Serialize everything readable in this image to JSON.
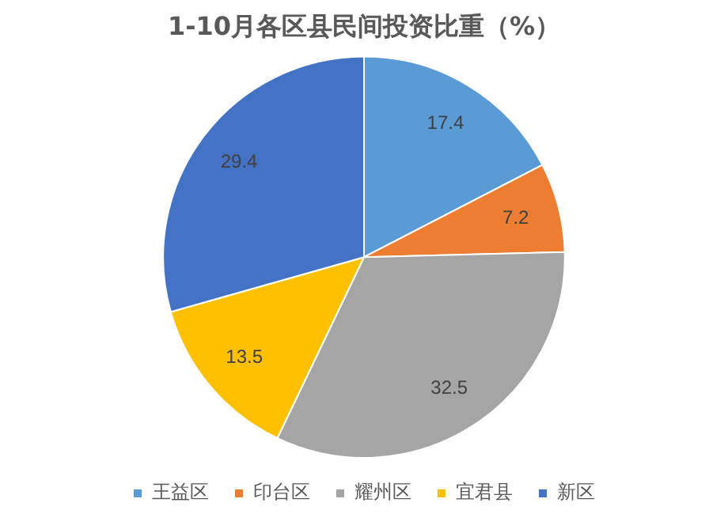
{
  "chart_data": {
    "type": "pie",
    "title": "1-10月各区县民间投资比重（%）",
    "categories": [
      "王益区",
      "印台区",
      "耀州区",
      "宜君县",
      "新区"
    ],
    "values": [
      17.4,
      7.2,
      32.5,
      13.5,
      29.4
    ],
    "colors": [
      "#5b9bd5",
      "#ed7d31",
      "#a5a5a5",
      "#ffc000",
      "#4472c4"
    ],
    "data_labels": true,
    "legend": "bottom"
  }
}
